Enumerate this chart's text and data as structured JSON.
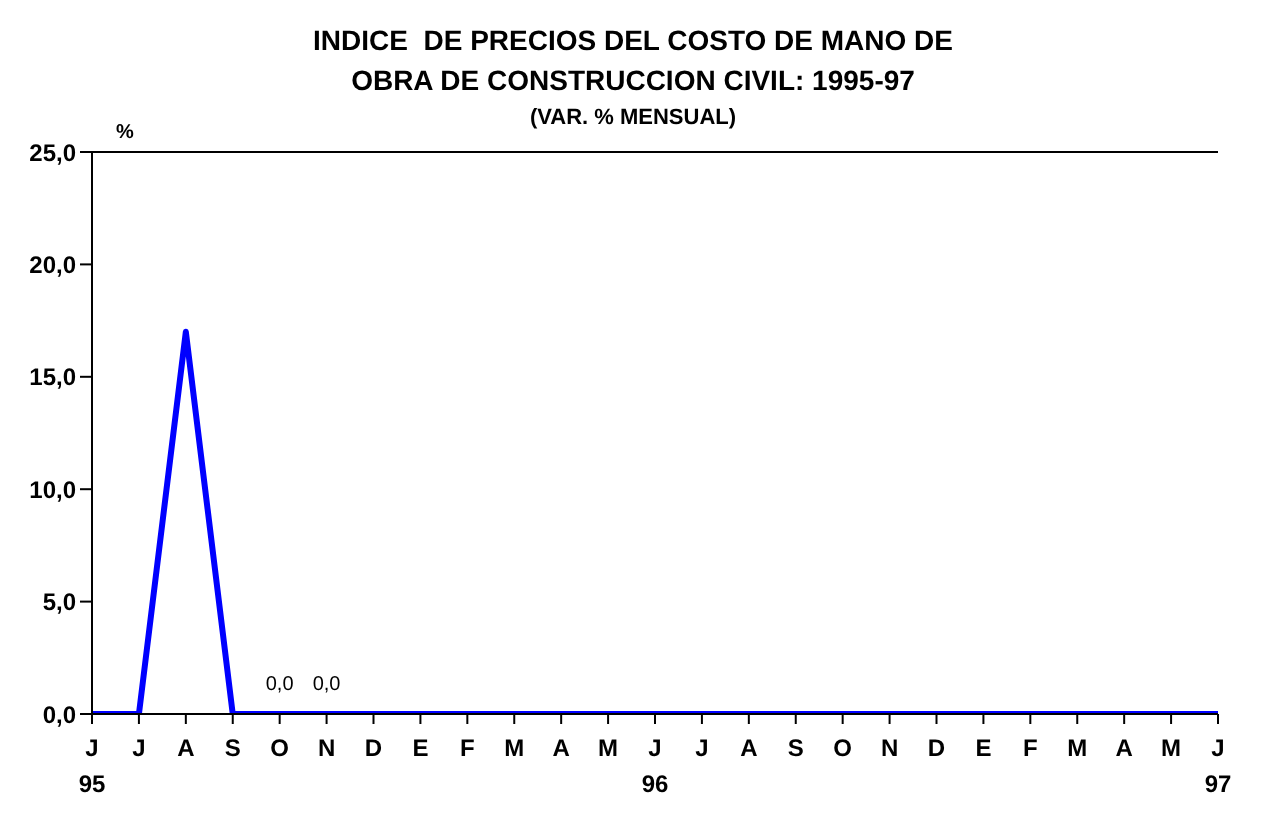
{
  "chart_data": {
    "type": "line",
    "title": "INDICE  DE PRECIOS DEL COSTO DE MANO DE\nOBRA DE CONSTRUCCION CIVIL: 1995-97",
    "subtitle": "(VAR. % MENSUAL)",
    "ylabel": "%",
    "categories": [
      "J\n95",
      "J",
      "A",
      "S",
      "O",
      "N",
      "D",
      "E",
      "F",
      "M",
      "A",
      "M",
      "J\n96",
      "J",
      "A",
      "S",
      "O",
      "N",
      "D",
      "E",
      "F",
      "M",
      "A",
      "M",
      "J\n97"
    ],
    "series": [
      {
        "color": "#0000ff",
        "values": [
          0,
          0,
          17,
          0,
          0,
          0,
          0,
          0,
          0,
          0,
          0,
          0,
          0,
          0,
          0,
          0,
          0,
          0,
          0,
          0,
          0,
          0,
          0,
          0,
          0
        ],
        "value_labels": [
          null,
          null,
          null,
          null,
          "0,0",
          "0,0",
          null,
          null,
          null,
          null,
          null,
          null,
          null,
          null,
          null,
          null,
          null,
          null,
          null,
          null,
          null,
          null,
          null,
          null,
          null
        ]
      }
    ],
    "ylim": [
      0,
      25
    ],
    "yticks": [
      {
        "value": 0,
        "label": "0,0"
      },
      {
        "value": 5,
        "label": "5,0"
      },
      {
        "value": 10,
        "label": "10,0"
      },
      {
        "value": 15,
        "label": "15,0"
      },
      {
        "value": 20,
        "label": "20,0"
      },
      {
        "value": 25,
        "label": "25,0"
      }
    ],
    "marker": "none",
    "line_style": "solid"
  }
}
